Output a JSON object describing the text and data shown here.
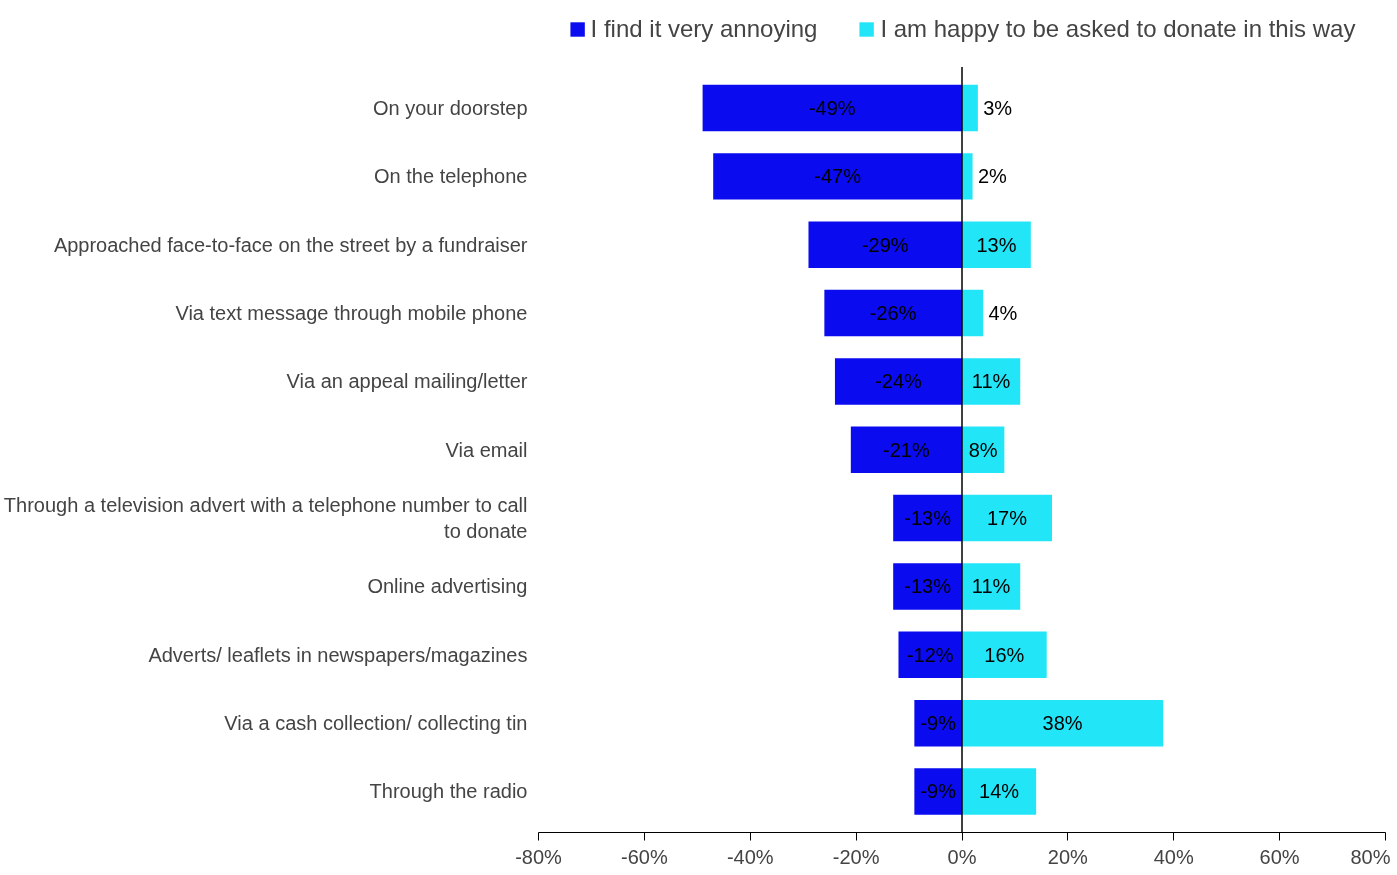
{
  "chart_data": {
    "type": "bar",
    "orientation": "horizontal",
    "stacked": true,
    "categories": [
      "On your doorstep",
      "On the telephone",
      "Approached face-to-face on the street by a fundraiser",
      "Via text message through mobile phone",
      "Via an appeal mailing/letter",
      "Via email",
      "Through a television advert with a telephone number to call to donate",
      "Online advertising",
      "Adverts/ leaflets in newspapers/magazines",
      "Via a cash collection/ collecting tin",
      "Through the radio"
    ],
    "series": [
      {
        "name": "I find it very annoying",
        "color": "#0b0bf0",
        "values": [
          -49,
          -47,
          -29,
          -26,
          -24,
          -21,
          -13,
          -13,
          -12,
          -9,
          -9
        ],
        "value_labels": [
          "-49%",
          "-47%",
          "-29%",
          "-26%",
          "-24%",
          "-21%",
          "-13%",
          "-13%",
          "-12%",
          "-9%",
          "-9%"
        ]
      },
      {
        "name": "I am happy to be asked to donate in this way",
        "color": "#22e6f8",
        "values": [
          3,
          2,
          13,
          4,
          11,
          8,
          17,
          11,
          16,
          38,
          14
        ],
        "value_labels": [
          "3%",
          "2%",
          "13%",
          "4%",
          "11%",
          "8%",
          "17%",
          "11%",
          "16%",
          "38%",
          "14%"
        ]
      }
    ],
    "xlim": [
      -80,
      80
    ],
    "xticks": [
      {
        "value": -80,
        "label": "-80%"
      },
      {
        "value": -60,
        "label": "-60%"
      },
      {
        "value": -40,
        "label": "-40%"
      },
      {
        "value": -20,
        "label": "-20%"
      },
      {
        "value": 0,
        "label": "0%"
      },
      {
        "value": 20,
        "label": "20%"
      },
      {
        "value": 40,
        "label": "40%"
      },
      {
        "value": 60,
        "label": "60%"
      },
      {
        "value": 80,
        "label": "80%"
      }
    ],
    "ref_lines": [
      {
        "axis": "x",
        "value": 0,
        "color": "#000000"
      }
    ],
    "grid": false,
    "legend": "top"
  }
}
